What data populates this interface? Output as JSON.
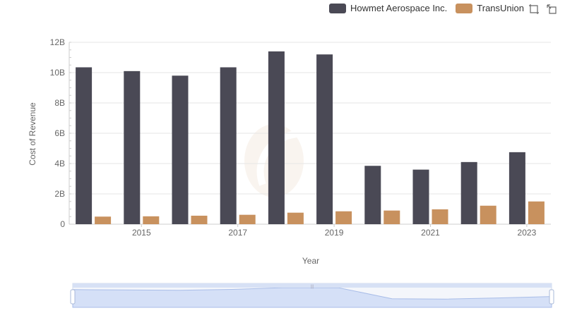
{
  "chart_data": {
    "type": "bar",
    "categories": [
      "2014",
      "2015",
      "2016",
      "2017",
      "2018",
      "2019",
      "2020",
      "2021",
      "2022",
      "2023"
    ],
    "x_tick_labels": [
      "2015",
      "2017",
      "2019",
      "2021",
      "2023"
    ],
    "series": [
      {
        "name": "Howmet Aerospace Inc.",
        "color": "#4a4955",
        "values": [
          10.35,
          10.1,
          9.8,
          10.35,
          11.4,
          11.2,
          3.85,
          3.6,
          4.1,
          4.75
        ]
      },
      {
        "name": "TransUnion",
        "color": "#c8915e",
        "values": [
          0.5,
          0.52,
          0.56,
          0.62,
          0.76,
          0.85,
          0.9,
          0.98,
          1.22,
          1.5
        ]
      }
    ],
    "y_tick_labels": [
      "0",
      "2B",
      "4B",
      "6B",
      "8B",
      "10B",
      "12B"
    ],
    "ylim": [
      0,
      12
    ],
    "xlabel": "Year",
    "ylabel": "Cost of Revenue",
    "grid": true,
    "legend_position": "top-right"
  },
  "toolbox": {
    "zoom_icon": "zoom-select-icon",
    "reset_icon": "zoom-reset-icon"
  },
  "datazoom": {
    "range": [
      0,
      100
    ]
  }
}
